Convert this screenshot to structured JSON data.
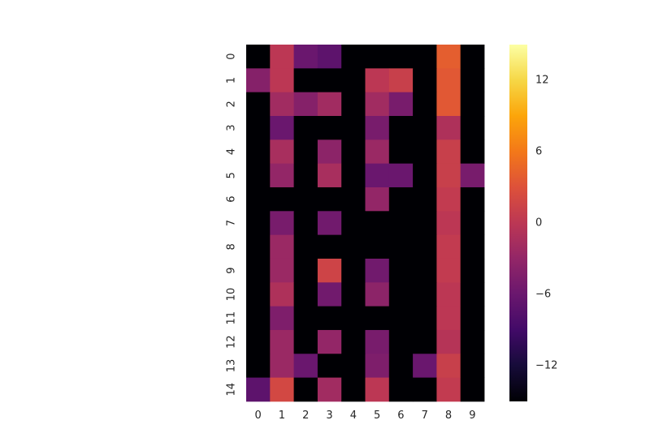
{
  "chart_data": {
    "type": "heatmap",
    "title": "",
    "xlabel": "",
    "ylabel": "",
    "x_categories": [
      "0",
      "1",
      "2",
      "3",
      "4",
      "5",
      "6",
      "7",
      "8",
      "9"
    ],
    "y_categories": [
      "0",
      "1",
      "2",
      "3",
      "4",
      "5",
      "6",
      "7",
      "8",
      "9",
      "10",
      "11",
      "12",
      "13",
      "14"
    ],
    "values": [
      [
        -15,
        0,
        -6,
        -7,
        -15,
        -15,
        -15,
        -15,
        4,
        -15
      ],
      [
        -4,
        0,
        -15,
        -15,
        -15,
        0,
        1,
        -15,
        3.5,
        -15
      ],
      [
        -15,
        -2,
        -4,
        -2,
        -15,
        -2,
        -5,
        -15,
        3.5,
        -15
      ],
      [
        -15,
        -6,
        -15,
        -15,
        -15,
        -5,
        -15,
        -15,
        -1,
        -15
      ],
      [
        -15,
        -1.5,
        -15,
        -3.5,
        -15,
        -2.5,
        -15,
        -15,
        1,
        -15
      ],
      [
        -15,
        -3,
        -15,
        -1.5,
        -15,
        -6,
        -6,
        -15,
        1,
        -5
      ],
      [
        -15,
        -15,
        -15,
        -15,
        -15,
        -3,
        -15,
        -15,
        0.5,
        -15
      ],
      [
        -15,
        -5,
        -15,
        -5.5,
        -15,
        -15,
        -15,
        -15,
        0,
        -15
      ],
      [
        -15,
        -2.5,
        -15,
        -15,
        -15,
        -15,
        -15,
        -15,
        0.5,
        -15
      ],
      [
        -15,
        -2.5,
        -15,
        1.5,
        -15,
        -5.5,
        -15,
        -15,
        0.5,
        -15
      ],
      [
        -15,
        -1,
        -15,
        -5.5,
        -15,
        -3.5,
        -15,
        -15,
        0,
        -15
      ],
      [
        -15,
        -4.5,
        -15,
        -15,
        -15,
        -15,
        -15,
        -15,
        0,
        -15
      ],
      [
        -15,
        -2.5,
        -15,
        -3,
        -15,
        -5,
        -15,
        -15,
        -0.5,
        -15
      ],
      [
        -15,
        -2.5,
        -6,
        -15,
        -15,
        -4.5,
        -15,
        -6,
        1,
        -15
      ],
      [
        -7,
        2,
        -15,
        -2,
        -15,
        0,
        -15,
        -15,
        0.5,
        -15
      ]
    ],
    "colorbar": {
      "colormap": "inferno",
      "vmin": -15,
      "vmax": 15,
      "ticks": [
        -12,
        -6,
        0,
        6,
        12
      ],
      "tick_labels": [
        "−12",
        "−6",
        "0",
        "6",
        "12"
      ]
    },
    "grid": false
  }
}
